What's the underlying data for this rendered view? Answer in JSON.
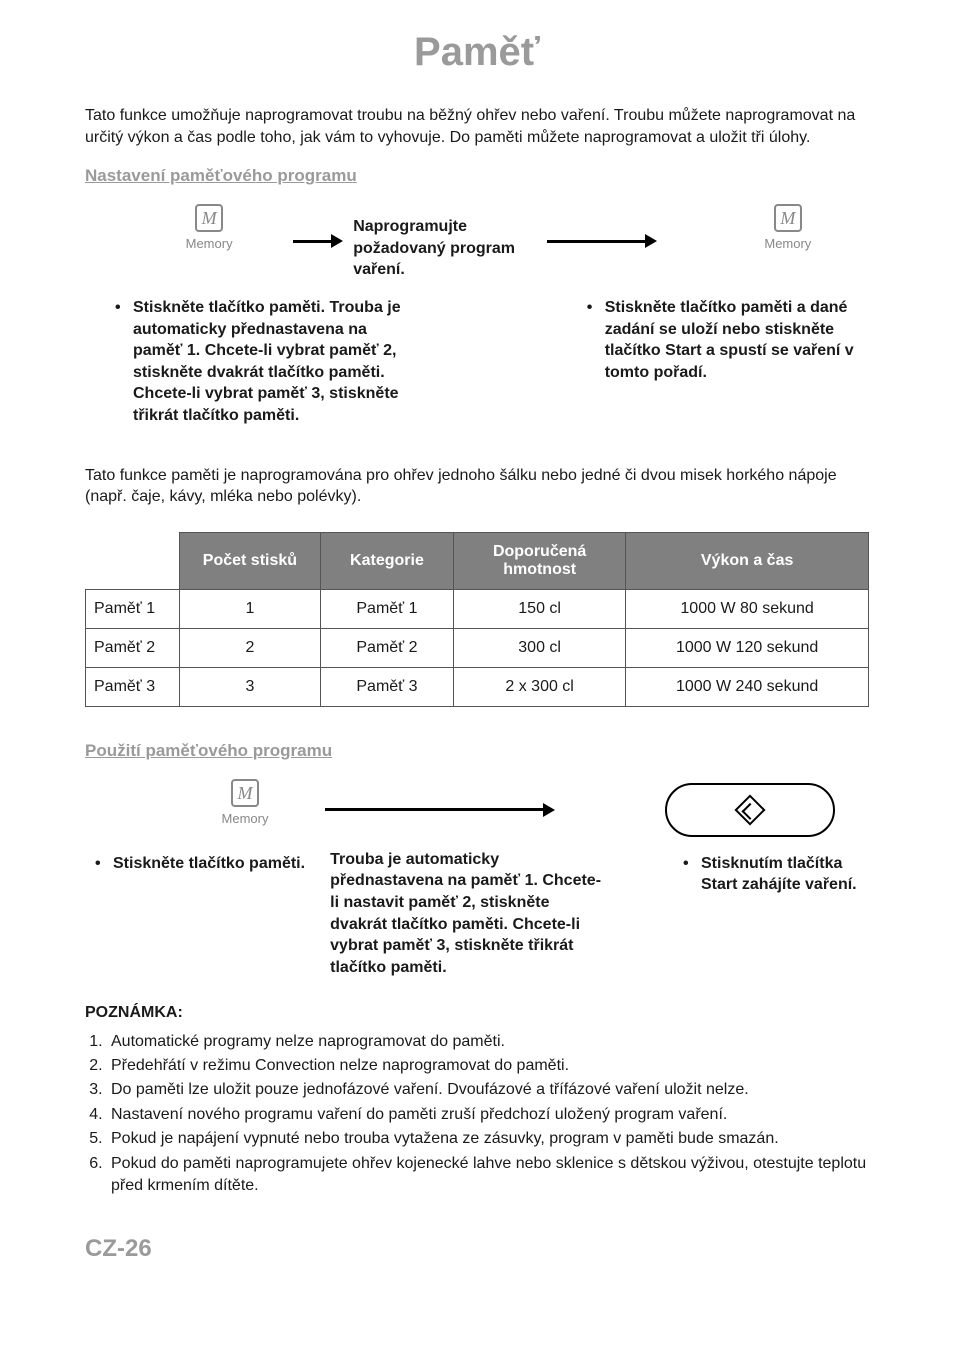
{
  "title": "Paměť",
  "intro": "Tato funkce umožňuje naprogramovat troubu na běžný ohřev nebo vaření. Troubu můžete naprogramovat na určitý výkon a čas podle toho, jak vám to vyhovuje. Do paměti můžete naprogramovat a uložit tři úlohy.",
  "section1_head": "Nastavení paměťového programu",
  "memory_icon_letter": "M",
  "memory_label": "Memory",
  "step1_left": "Stiskněte tlačítko paměti. Trouba je automaticky přednastavena na paměť 1. Chcete-li vybrat paměť 2, stiskněte dvakrát tlačítko paměti. Chcete-li vybrat paměť 3, stiskněte třikrát tlačítko paměti.",
  "step1_mid": "Naprogramujte požadovaný program vaření.",
  "step1_right": "Stiskněte tlačítko paměti a dané zadání se uloží nebo stiskněte tlačítko Start a spustí se vaření v tomto pořadí.",
  "para2": "Tato funkce paměti je naprogramována pro ohřev jednoho šálku nebo jedné či dvou misek horkého nápoje (např. čaje, kávy, mléka nebo polévky).",
  "table": {
    "headers": [
      "",
      "Počet stisků",
      "Kategorie",
      "Doporučená hmotnost",
      "Výkon a čas"
    ],
    "col_widths": [
      "12%",
      "18%",
      "17%",
      "22%",
      "31%"
    ],
    "rows": [
      [
        "Paměť 1",
        "1",
        "Paměť 1",
        "150 cl",
        "1000 W 80 sekund"
      ],
      [
        "Paměť 2",
        "2",
        "Paměť 2",
        "300 cl",
        "1000 W 120 sekund"
      ],
      [
        "Paměť 3",
        "3",
        "Paměť 3",
        "2 x 300 cl",
        "1000 W 240  sekund"
      ]
    ]
  },
  "section2_head": "Použití paměťového programu",
  "step2_left": "Stiskněte tlačítko paměti.",
  "step2_mid": "Trouba je automaticky přednastavena na paměť 1. Chcete-li nastavit paměť 2, stiskněte dvakrát tlačítko paměti. Chcete-li vybrat paměť 3, stiskněte třikrát tlačítko paměti.",
  "step2_right": "Stisknutím tlačítka Start zahájíte vaření.",
  "notes_head": "POZNÁMKA:",
  "notes": [
    "Automatické programy nelze naprogramovat do paměti.",
    "Předehřátí v režimu Convection nelze naprogramovat do paměti.",
    "Do paměti lze uložit pouze jednofázové vaření. Dvoufázové a třífázové vaření uložit nelze.",
    "Nastavení nového programu vaření do paměti zruší předchozí uložený program vaření.",
    "Pokud je napájení vypnuté nebo trouba vytažena ze zásuvky, program v paměti bude smazán.",
    "Pokud do paměti naprogramujete ohřev kojenecké lahve nebo sklenice s dětskou výživou, otestujte teplotu před krmením dítěte."
  ],
  "page_num": "CZ-26",
  "colors": {
    "gray_text": "#9a9a9a",
    "table_header_bg": "#808080",
    "table_header_fg": "#ffffff",
    "border": "#555555",
    "icon_gray": "#888888",
    "body_text": "#1a1a1a",
    "background": "#ffffff"
  },
  "font_sizes": {
    "title": 40,
    "subhead": 17,
    "body": 16,
    "page_num": 24,
    "mem_label": 13
  }
}
